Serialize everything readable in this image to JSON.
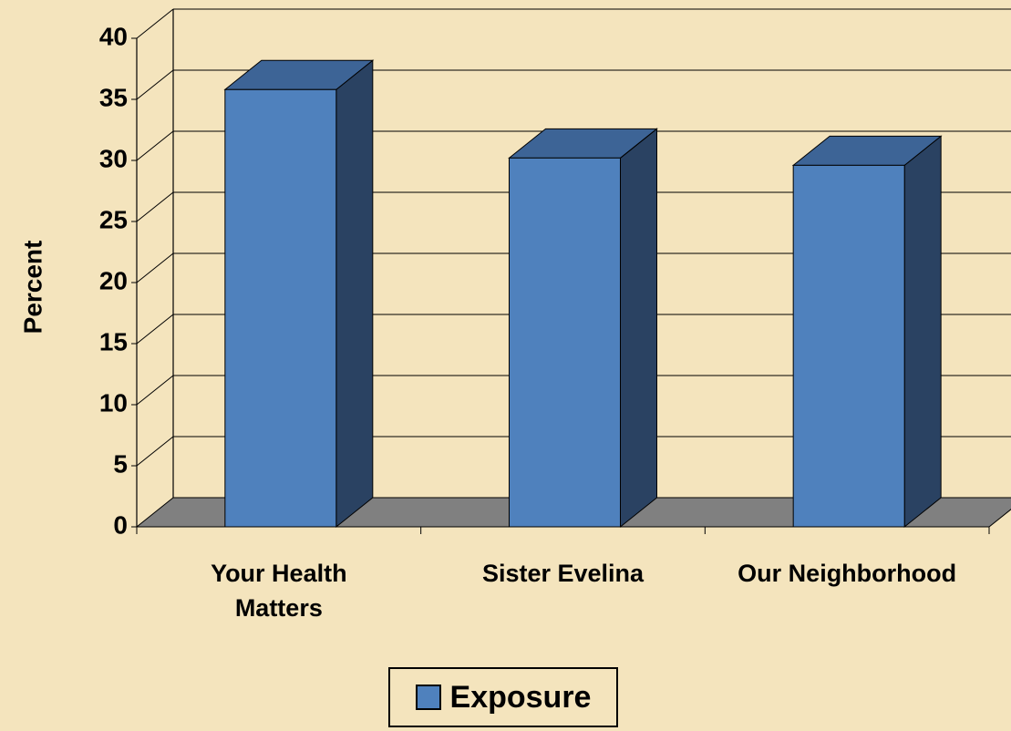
{
  "chart_data": {
    "type": "bar3d",
    "y_label": "Percent",
    "categories": [
      "Your Health Matters",
      "Sister Evelina",
      "Our Neighborhood"
    ],
    "series": [
      {
        "name": "Exposure",
        "color": "#4f81bd",
        "values": [
          35.8,
          30.2,
          29.6
        ]
      }
    ],
    "ylim": [
      0,
      40
    ],
    "yticks": [
      0,
      5,
      10,
      15,
      20,
      25,
      30,
      35,
      40
    ],
    "grid": true,
    "legend": "bottom"
  }
}
